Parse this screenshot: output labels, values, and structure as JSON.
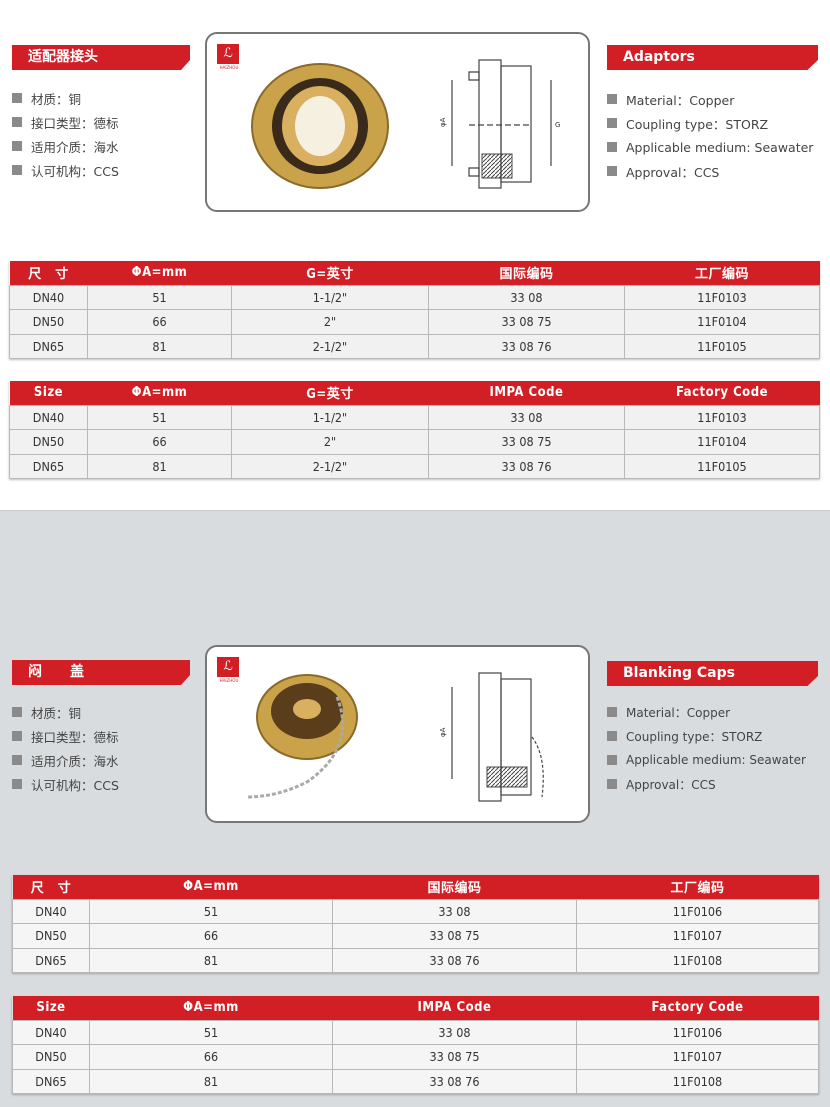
{
  "colors": {
    "accent": "#d21f26",
    "section2_bg": "#d9dcdf"
  },
  "adaptors": {
    "title_cn": "适配器接头",
    "features_cn": [
      "材质：铜",
      "接口类型：德标",
      "适用介质：海水",
      "认可机构：CCS"
    ],
    "title_en": "Adaptors",
    "features_en": [
      "Material：Copper",
      "Coupling type：STORZ",
      "Applicable medium: Seawater",
      "Approval：CCS"
    ],
    "logo_text": "HAIZHOU",
    "drawing_labels": {
      "a": "φA",
      "g": "G"
    },
    "table_cn": {
      "headers": [
        "尺　寸",
        "ΦA=mm",
        "G=英寸",
        "国际编码",
        "工厂编码"
      ],
      "rows": [
        [
          "DN40",
          "51",
          "1-1/2\"",
          "33 08",
          "11F0103"
        ],
        [
          "DN50",
          "66",
          "2\"",
          "33 08 75",
          "11F0104"
        ],
        [
          "DN65",
          "81",
          "2-1/2\"",
          "33 08 76",
          "11F0105"
        ]
      ]
    },
    "table_en": {
      "headers": [
        "Size",
        "ΦA=mm",
        "G=英寸",
        "IMPA Code",
        "Factory Code"
      ],
      "rows": [
        [
          "DN40",
          "51",
          "1-1/2\"",
          "33 08",
          "11F0103"
        ],
        [
          "DN50",
          "66",
          "2\"",
          "33 08 75",
          "11F0104"
        ],
        [
          "DN65",
          "81",
          "2-1/2\"",
          "33 08 76",
          "11F0105"
        ]
      ]
    }
  },
  "caps": {
    "title_cn": "闷　　盖",
    "features_cn": [
      "材质：铜",
      "接口类型：德标",
      "适用介质：海水",
      "认可机构：CCS"
    ],
    "title_en": "Blanking Caps",
    "features_en": [
      "Material：Copper",
      "Coupling type：STORZ",
      "Applicable medium: Seawater",
      "Approval：CCS"
    ],
    "logo_text": "HAIZHOU",
    "drawing_labels": {
      "a": "φA"
    },
    "table_cn": {
      "headers": [
        "尺　寸",
        "ΦA=mm",
        "国际编码",
        "工厂编码"
      ],
      "rows": [
        [
          "DN40",
          "51",
          "33 08",
          "11F0106"
        ],
        [
          "DN50",
          "66",
          "33 08 75",
          "11F0107"
        ],
        [
          "DN65",
          "81",
          "33 08 76",
          "11F0108"
        ]
      ]
    },
    "table_en": {
      "headers": [
        "Size",
        "ΦA=mm",
        "IMPA Code",
        "Factory Code"
      ],
      "rows": [
        [
          "DN40",
          "51",
          "33 08",
          "11F0106"
        ],
        [
          "DN50",
          "66",
          "33 08 75",
          "11F0107"
        ],
        [
          "DN65",
          "81",
          "33 08 76",
          "11F0108"
        ]
      ]
    }
  }
}
